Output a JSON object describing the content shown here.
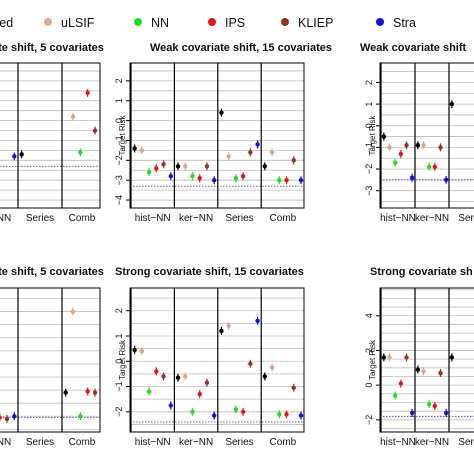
{
  "legend": [
    {
      "name": "sed",
      "color": "#000000"
    },
    {
      "name": "uLSIF",
      "color": "#e0a48a"
    },
    {
      "name": "NN",
      "color": "#22dd22"
    },
    {
      "name": "IPS",
      "color": "#ee1111"
    },
    {
      "name": "KLIEP",
      "color": "#993322"
    },
    {
      "name": "Stra",
      "color": "#1111dd"
    }
  ],
  "chart_data": [
    {
      "type": "scatter",
      "title": "ate shift, 5 covariates",
      "ylabel": "",
      "ylim": [
        -4.4,
        2.9
      ],
      "yticks": [],
      "ref_line": -2.3,
      "categories": [
        "NN",
        "Series",
        "Comb"
      ],
      "points": [
        {
          "cat": -1,
          "pos": 5,
          "y": -1.8,
          "color": "#1111dd"
        },
        {
          "cat": 0,
          "pos": 0,
          "y": -1.7,
          "color": "#000000"
        },
        {
          "cat": 1,
          "pos": 1,
          "y": 0.2,
          "color": "#e0a48a"
        },
        {
          "cat": 1,
          "pos": 2,
          "y": -1.6,
          "color": "#22dd22"
        },
        {
          "cat": 1,
          "pos": 3,
          "y": 1.4,
          "color": "#ee1111"
        },
        {
          "cat": 1,
          "pos": 4,
          "y": -0.5,
          "color": "#993322"
        },
        {
          "cat": 1,
          "pos": 5,
          "y": -1.5,
          "color": "#1111dd"
        },
        {
          "cat": 2,
          "pos": 0,
          "y": -1.8,
          "color": "#000000"
        },
        {
          "cat": 2,
          "pos": 1,
          "y": -1.2,
          "color": "#e0a48a"
        },
        {
          "cat": 2,
          "pos": 2,
          "y": -1.6,
          "color": "#22dd22"
        },
        {
          "cat": 2,
          "pos": 3,
          "y": -1.0,
          "color": "#ee1111"
        },
        {
          "cat": 2,
          "pos": 4,
          "y": -0.7,
          "color": "#993322"
        },
        {
          "cat": 2,
          "pos": 5,
          "y": -2.1,
          "color": "#1111dd"
        }
      ]
    },
    {
      "type": "scatter",
      "title": "Weak covariate shift, 15 covariates",
      "ylabel": "Target Risk",
      "ylim": [
        -4.4,
        2.9
      ],
      "yticks": [
        2,
        1,
        0,
        -1,
        -2,
        -3,
        -4
      ],
      "ref_line": -3.3,
      "categories": [
        "hist−NN",
        "ker−NN",
        "Series",
        "Comb"
      ],
      "points": [
        {
          "cat": 0,
          "pos": 0,
          "y": -1.4,
          "color": "#000000"
        },
        {
          "cat": 0,
          "pos": 1,
          "y": -1.5,
          "color": "#e0a48a"
        },
        {
          "cat": 0,
          "pos": 2,
          "y": -2.6,
          "color": "#22dd22"
        },
        {
          "cat": 0,
          "pos": 3,
          "y": -2.4,
          "color": "#ee1111"
        },
        {
          "cat": 0,
          "pos": 4,
          "y": -2.2,
          "color": "#993322"
        },
        {
          "cat": 0,
          "pos": 5,
          "y": -2.8,
          "color": "#1111dd"
        },
        {
          "cat": 1,
          "pos": 0,
          "y": -2.3,
          "color": "#000000"
        },
        {
          "cat": 1,
          "pos": 1,
          "y": -2.3,
          "color": "#e0a48a"
        },
        {
          "cat": 1,
          "pos": 2,
          "y": -2.8,
          "color": "#22dd22"
        },
        {
          "cat": 1,
          "pos": 3,
          "y": -2.9,
          "color": "#ee1111"
        },
        {
          "cat": 1,
          "pos": 4,
          "y": -2.3,
          "color": "#993322"
        },
        {
          "cat": 1,
          "pos": 5,
          "y": -3.0,
          "color": "#1111dd"
        },
        {
          "cat": 2,
          "pos": 0,
          "y": 0.4,
          "color": "#000000"
        },
        {
          "cat": 2,
          "pos": 1,
          "y": -1.8,
          "color": "#e0a48a"
        },
        {
          "cat": 2,
          "pos": 2,
          "y": -2.9,
          "color": "#22dd22"
        },
        {
          "cat": 2,
          "pos": 3,
          "y": -2.8,
          "color": "#ee1111"
        },
        {
          "cat": 2,
          "pos": 4,
          "y": -1.6,
          "color": "#993322"
        },
        {
          "cat": 2,
          "pos": 5,
          "y": -1.2,
          "color": "#1111dd"
        },
        {
          "cat": 3,
          "pos": 0,
          "y": -2.3,
          "color": "#000000"
        },
        {
          "cat": 3,
          "pos": 1,
          "y": -1.6,
          "color": "#e0a48a"
        },
        {
          "cat": 3,
          "pos": 2,
          "y": -3.0,
          "color": "#22dd22"
        },
        {
          "cat": 3,
          "pos": 3,
          "y": -3.0,
          "color": "#ee1111"
        },
        {
          "cat": 3,
          "pos": 4,
          "y": -2.0,
          "color": "#993322"
        },
        {
          "cat": 3,
          "pos": 5,
          "y": -3.0,
          "color": "#1111dd"
        }
      ]
    },
    {
      "type": "scatter",
      "title": "Weak covariate shift",
      "ylabel": "Target Risk",
      "ylim": [
        -3.8,
        2.9
      ],
      "yticks": [
        2,
        1,
        0,
        -1,
        -2,
        -3
      ],
      "ref_line": -2.5,
      "categories": [
        "hist−NN",
        "ker−NN",
        "Ser"
      ],
      "points": [
        {
          "cat": 0,
          "pos": 0,
          "y": -0.5,
          "color": "#000000"
        },
        {
          "cat": 0,
          "pos": 1,
          "y": -1.0,
          "color": "#e0a48a"
        },
        {
          "cat": 0,
          "pos": 2,
          "y": -1.7,
          "color": "#22dd22"
        },
        {
          "cat": 0,
          "pos": 3,
          "y": -1.3,
          "color": "#ee1111"
        },
        {
          "cat": 0,
          "pos": 4,
          "y": -0.9,
          "color": "#993322"
        },
        {
          "cat": 0,
          "pos": 5,
          "y": -2.4,
          "color": "#1111dd"
        },
        {
          "cat": 1,
          "pos": 0,
          "y": -0.9,
          "color": "#000000"
        },
        {
          "cat": 1,
          "pos": 1,
          "y": -0.9,
          "color": "#e0a48a"
        },
        {
          "cat": 1,
          "pos": 2,
          "y": -1.9,
          "color": "#22dd22"
        },
        {
          "cat": 1,
          "pos": 3,
          "y": -1.9,
          "color": "#ee1111"
        },
        {
          "cat": 1,
          "pos": 4,
          "y": -1.0,
          "color": "#993322"
        },
        {
          "cat": 1,
          "pos": 5,
          "y": -2.5,
          "color": "#1111dd"
        },
        {
          "cat": 2,
          "pos": 0,
          "y": 1.0,
          "color": "#000000"
        }
      ]
    },
    {
      "type": "scatter",
      "title": "ate shift, 5 covariates",
      "ylabel": "",
      "ylim": [
        -2.6,
        2.9
      ],
      "yticks": [],
      "ref_line": -2.05,
      "categories": [
        "NN",
        "Series",
        "Comb"
      ],
      "points": [
        {
          "cat": -1,
          "pos": 3,
          "y": -2.05,
          "color": "#ee1111"
        },
        {
          "cat": -1,
          "pos": 4,
          "y": -2.1,
          "color": "#993322"
        },
        {
          "cat": -1,
          "pos": 5,
          "y": -2.0,
          "color": "#1111dd"
        },
        {
          "cat": 1,
          "pos": 0,
          "y": -1.1,
          "color": "#000000"
        },
        {
          "cat": 1,
          "pos": 1,
          "y": 2.0,
          "color": "#e0a48a"
        },
        {
          "cat": 1,
          "pos": 2,
          "y": -2.0,
          "color": "#22dd22"
        },
        {
          "cat": 1,
          "pos": 3,
          "y": -1.05,
          "color": "#ee1111"
        },
        {
          "cat": 1,
          "pos": 4,
          "y": -1.1,
          "color": "#993322"
        },
        {
          "cat": 1,
          "pos": 5,
          "y": -2.0,
          "color": "#1111dd"
        },
        {
          "cat": 2,
          "pos": 0,
          "y": -1.1,
          "color": "#000000"
        },
        {
          "cat": 2,
          "pos": 1,
          "y": 0.75,
          "color": "#e0a48a"
        },
        {
          "cat": 2,
          "pos": 2,
          "y": -2.0,
          "color": "#22dd22"
        },
        {
          "cat": 2,
          "pos": 3,
          "y": -2.0,
          "color": "#ee1111"
        },
        {
          "cat": 2,
          "pos": 4,
          "y": -2.0,
          "color": "#993322"
        },
        {
          "cat": 2,
          "pos": 5,
          "y": -2.0,
          "color": "#1111dd"
        }
      ]
    },
    {
      "type": "scatter",
      "title": "Strong covariate shift, 15 covariates",
      "ylabel": "Target Risk",
      "ylim": [
        -2.8,
        2.9
      ],
      "yticks": [
        2,
        1,
        0,
        -1,
        -2
      ],
      "ref_line": -2.4,
      "categories": [
        "hist−NN",
        "ker−NN",
        "Series",
        "Comb"
      ],
      "points": [
        {
          "cat": 0,
          "pos": 0,
          "y": 0.45,
          "color": "#000000"
        },
        {
          "cat": 0,
          "pos": 1,
          "y": 0.4,
          "color": "#e0a48a"
        },
        {
          "cat": 0,
          "pos": 2,
          "y": -1.2,
          "color": "#22dd22"
        },
        {
          "cat": 0,
          "pos": 3,
          "y": -0.4,
          "color": "#ee1111"
        },
        {
          "cat": 0,
          "pos": 4,
          "y": -0.6,
          "color": "#993322"
        },
        {
          "cat": 0,
          "pos": 5,
          "y": -1.75,
          "color": "#1111dd"
        },
        {
          "cat": 1,
          "pos": 0,
          "y": -0.65,
          "color": "#000000"
        },
        {
          "cat": 1,
          "pos": 1,
          "y": -0.6,
          "color": "#e0a48a"
        },
        {
          "cat": 1,
          "pos": 2,
          "y": -2.0,
          "color": "#22dd22"
        },
        {
          "cat": 1,
          "pos": 3,
          "y": -1.3,
          "color": "#ee1111"
        },
        {
          "cat": 1,
          "pos": 4,
          "y": -0.85,
          "color": "#993322"
        },
        {
          "cat": 1,
          "pos": 5,
          "y": -2.15,
          "color": "#1111dd"
        },
        {
          "cat": 2,
          "pos": 0,
          "y": 1.2,
          "color": "#000000"
        },
        {
          "cat": 2,
          "pos": 1,
          "y": 1.4,
          "color": "#e0a48a"
        },
        {
          "cat": 2,
          "pos": 2,
          "y": -1.9,
          "color": "#22dd22"
        },
        {
          "cat": 2,
          "pos": 3,
          "y": -2.0,
          "color": "#ee1111"
        },
        {
          "cat": 2,
          "pos": 4,
          "y": -0.1,
          "color": "#993322"
        },
        {
          "cat": 2,
          "pos": 5,
          "y": 1.6,
          "color": "#1111dd"
        },
        {
          "cat": 3,
          "pos": 0,
          "y": -0.6,
          "color": "#000000"
        },
        {
          "cat": 3,
          "pos": 1,
          "y": -0.25,
          "color": "#e0a48a"
        },
        {
          "cat": 3,
          "pos": 2,
          "y": -2.1,
          "color": "#22dd22"
        },
        {
          "cat": 3,
          "pos": 3,
          "y": -2.1,
          "color": "#ee1111"
        },
        {
          "cat": 3,
          "pos": 4,
          "y": -1.05,
          "color": "#993322"
        },
        {
          "cat": 3,
          "pos": 5,
          "y": -2.15,
          "color": "#1111dd"
        }
      ]
    },
    {
      "type": "scatter",
      "title": "Strong covariate sh",
      "ylabel": "Target Risk",
      "ylim": [
        -2.7,
        5.6
      ],
      "yticks": [
        4,
        2,
        0,
        -2
      ],
      "ref_line": -1.8,
      "categories": [
        "hist−NN",
        "ker−NN",
        "Ser"
      ],
      "points": [
        {
          "cat": 0,
          "pos": 0,
          "y": 1.6,
          "color": "#000000"
        },
        {
          "cat": 0,
          "pos": 1,
          "y": 1.6,
          "color": "#e0a48a"
        },
        {
          "cat": 0,
          "pos": 2,
          "y": -0.6,
          "color": "#22dd22"
        },
        {
          "cat": 0,
          "pos": 3,
          "y": 0.1,
          "color": "#ee1111"
        },
        {
          "cat": 0,
          "pos": 4,
          "y": 1.6,
          "color": "#993322"
        },
        {
          "cat": 0,
          "pos": 5,
          "y": -1.6,
          "color": "#1111dd"
        },
        {
          "cat": 1,
          "pos": 0,
          "y": 0.9,
          "color": "#000000"
        },
        {
          "cat": 1,
          "pos": 1,
          "y": 0.8,
          "color": "#e0a48a"
        },
        {
          "cat": 1,
          "pos": 2,
          "y": -1.1,
          "color": "#22dd22"
        },
        {
          "cat": 1,
          "pos": 3,
          "y": -1.2,
          "color": "#ee1111"
        },
        {
          "cat": 1,
          "pos": 4,
          "y": 0.7,
          "color": "#993322"
        },
        {
          "cat": 1,
          "pos": 5,
          "y": -1.6,
          "color": "#1111dd"
        },
        {
          "cat": 2,
          "pos": 0,
          "y": 1.6,
          "color": "#000000"
        }
      ]
    }
  ]
}
